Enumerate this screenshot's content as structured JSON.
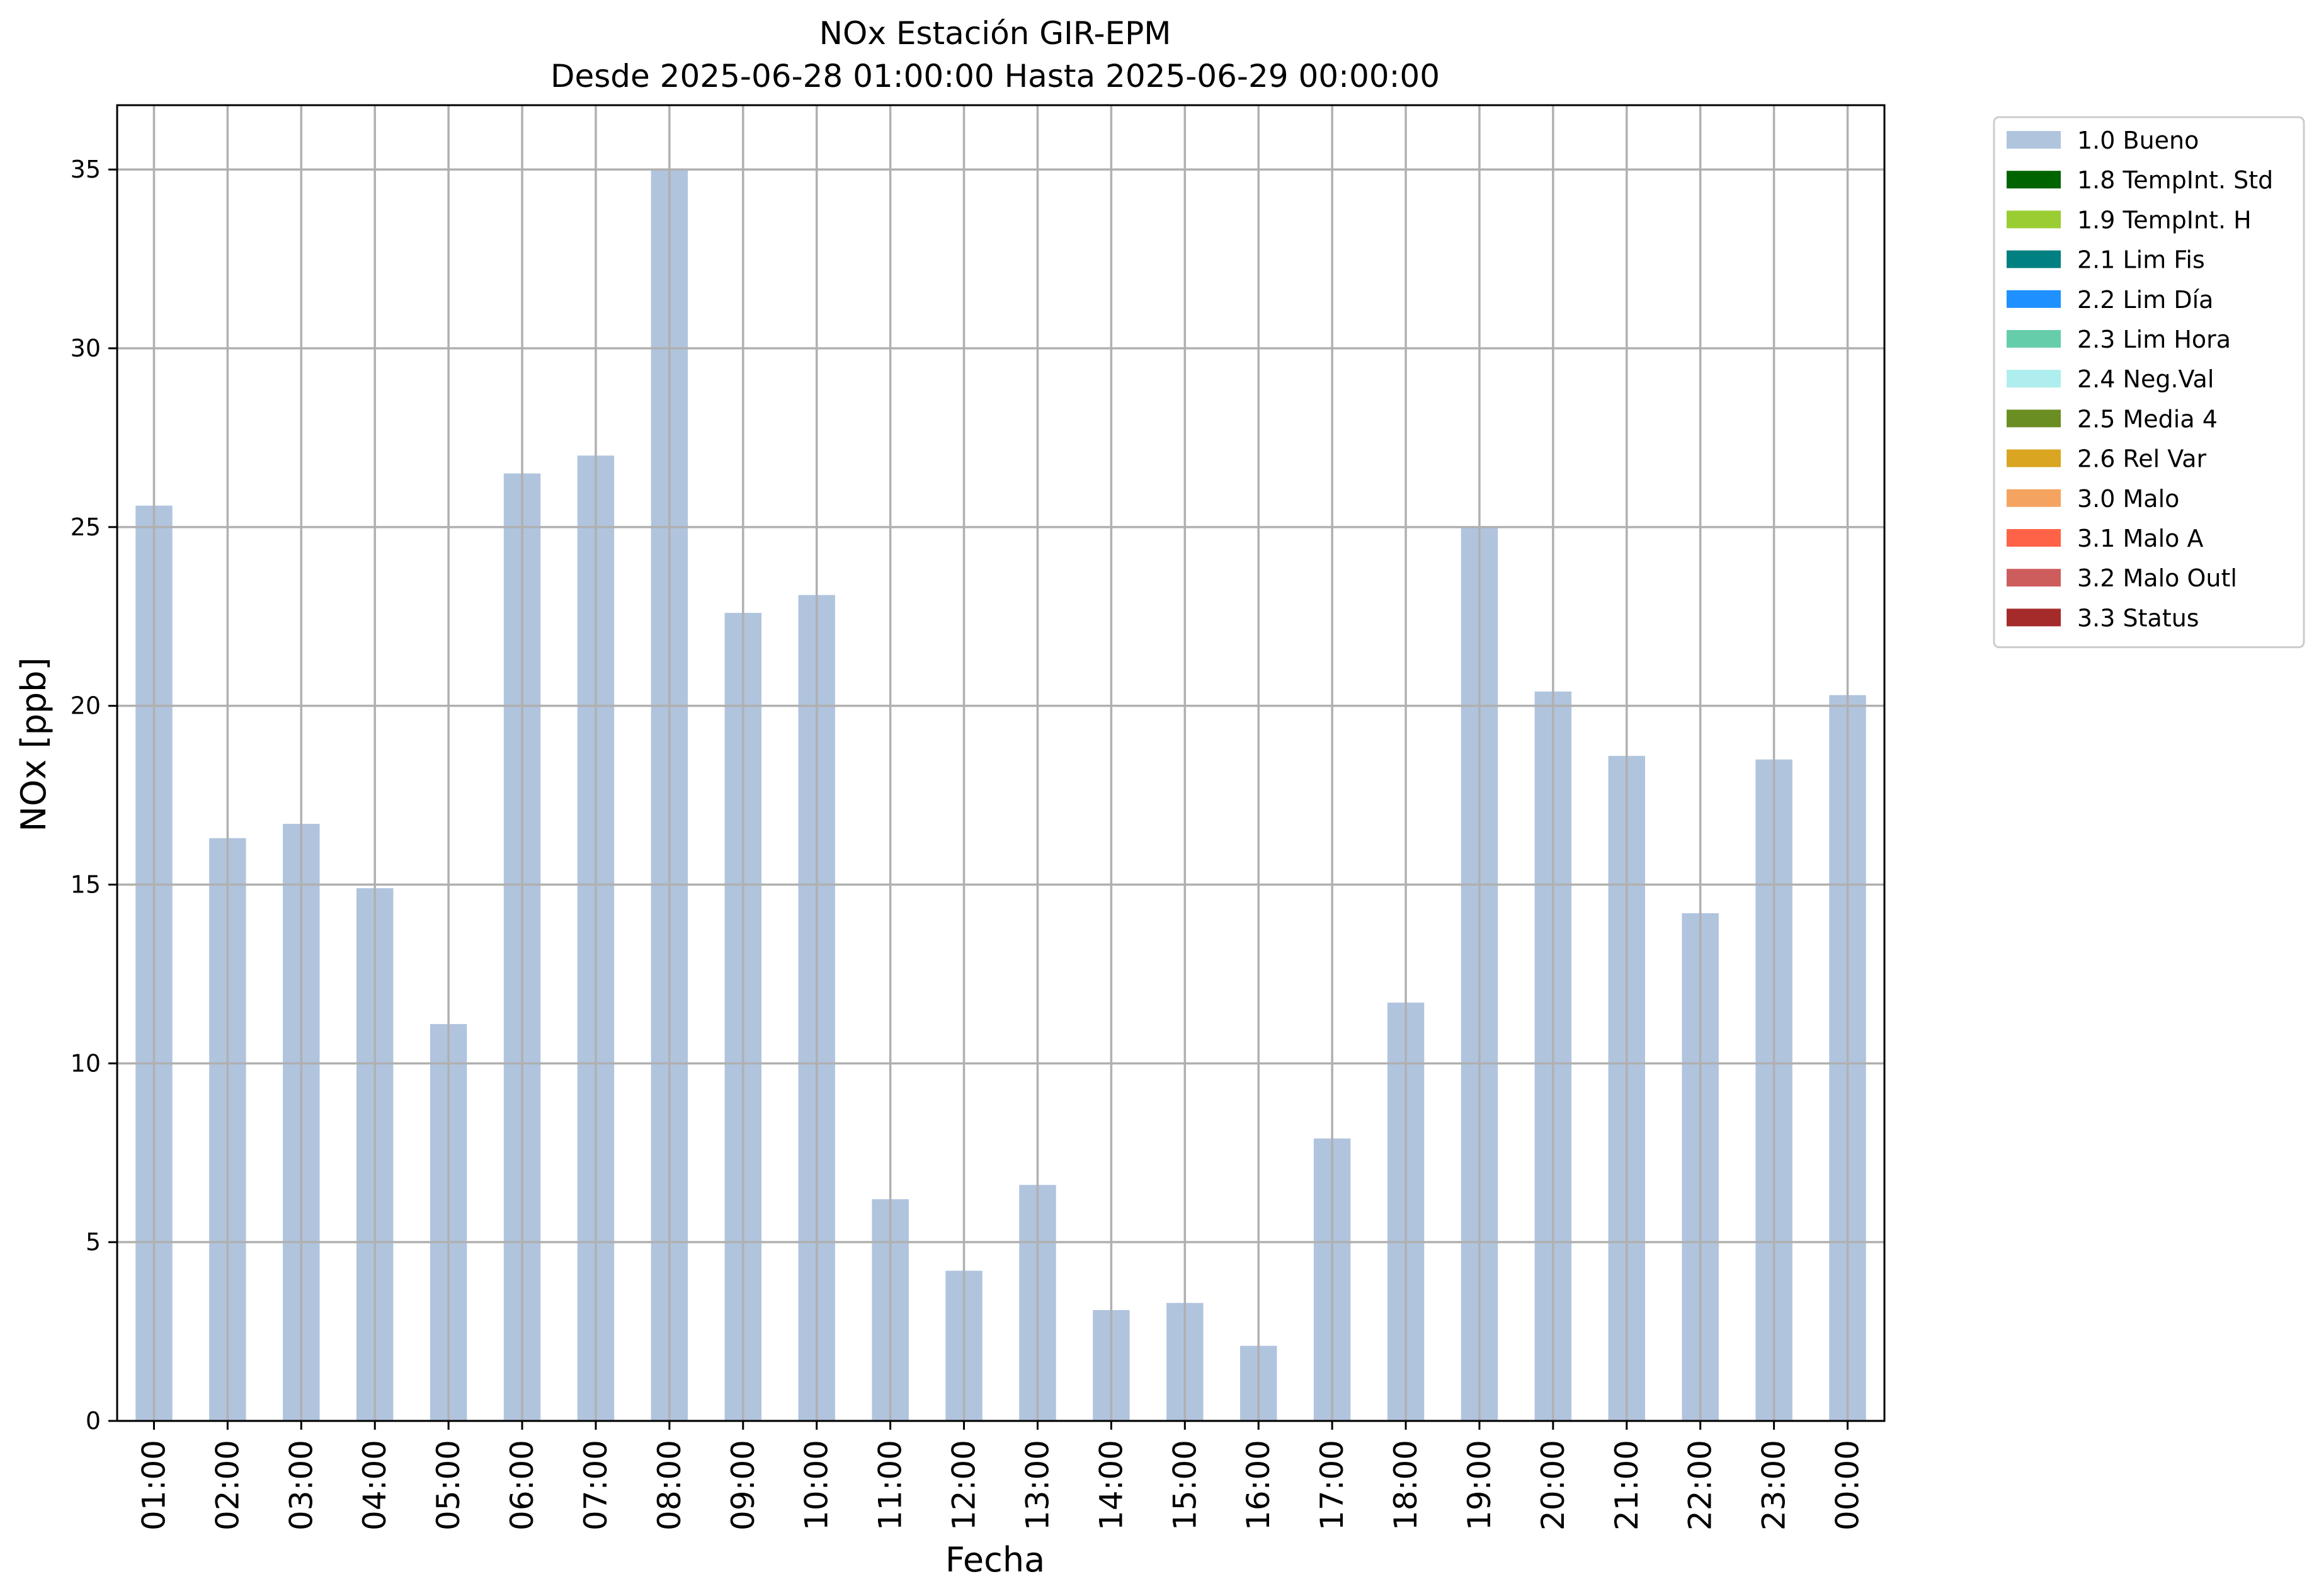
{
  "chart_data": {
    "type": "bar",
    "title": "NOx Estación GIR-EPM",
    "subtitle": "Desde 2025-06-28 01:00:00 Hasta 2025-06-29 00:00:00",
    "xlabel": "Fecha",
    "ylabel": "NOx [ppb]",
    "ylim": [
      0,
      36.8
    ],
    "yticks": [
      0,
      5,
      10,
      15,
      20,
      25,
      30,
      35
    ],
    "grid": true,
    "legend_position": "outside-top-right",
    "categories": [
      "01:00",
      "02:00",
      "03:00",
      "04:00",
      "05:00",
      "06:00",
      "07:00",
      "08:00",
      "09:00",
      "10:00",
      "11:00",
      "12:00",
      "13:00",
      "14:00",
      "15:00",
      "16:00",
      "17:00",
      "18:00",
      "19:00",
      "20:00",
      "21:00",
      "22:00",
      "23:00",
      "00:00"
    ],
    "series": [
      {
        "name": "1.0 Bueno",
        "color": "#b0c4de",
        "values": [
          25.6,
          16.3,
          16.7,
          14.9,
          11.1,
          26.5,
          27.0,
          35.0,
          22.6,
          23.1,
          6.2,
          4.2,
          6.6,
          3.1,
          3.3,
          2.1,
          7.9,
          11.7,
          25.0,
          20.4,
          18.6,
          14.2,
          18.5,
          20.3
        ]
      }
    ],
    "legend": [
      {
        "label": "1.0 Bueno",
        "color": "#b0c4de"
      },
      {
        "label": "1.8 TempInt. Std",
        "color": "#006400"
      },
      {
        "label": "1.9 TempInt. H",
        "color": "#9acd32"
      },
      {
        "label": "2.1 Lim Fis",
        "color": "#008080"
      },
      {
        "label": "2.2 Lim Día",
        "color": "#1e90ff"
      },
      {
        "label": "2.3 Lim Hora",
        "color": "#66cdaa"
      },
      {
        "label": "2.4 Neg.Val",
        "color": "#afeeee"
      },
      {
        "label": "2.5 Media 4",
        "color": "#6b8e23"
      },
      {
        "label": "2.6 Rel Var",
        "color": "#daa520"
      },
      {
        "label": "3.0 Malo",
        "color": "#f4a460"
      },
      {
        "label": "3.1 Malo A",
        "color": "#ff6347"
      },
      {
        "label": "3.2 Malo Outl",
        "color": "#cd5c5c"
      },
      {
        "label": "3.3 Status",
        "color": "#a52a2a"
      }
    ]
  }
}
